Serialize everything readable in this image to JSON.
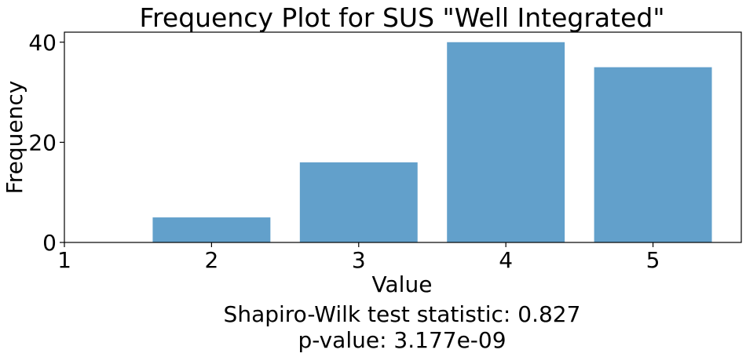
{
  "chart_data": {
    "type": "bar",
    "title": "Frequency Plot for SUS \"Well Integrated\"",
    "xlabel": "Value",
    "ylabel": "Frequency",
    "x": [
      2,
      3,
      4,
      5
    ],
    "values": [
      5,
      16,
      40,
      35
    ],
    "xlim": [
      1,
      5.6
    ],
    "ylim": [
      0,
      42
    ],
    "xticks": [
      "1",
      "2",
      "3",
      "4",
      "5"
    ],
    "yticks": [
      "0",
      "20",
      "40"
    ],
    "bar_color": "#62a0cb",
    "grid": false,
    "annotation_lines": [
      "Shapiro-Wilk test statistic: 0.827",
      "p-value: 3.177e-09"
    ]
  }
}
